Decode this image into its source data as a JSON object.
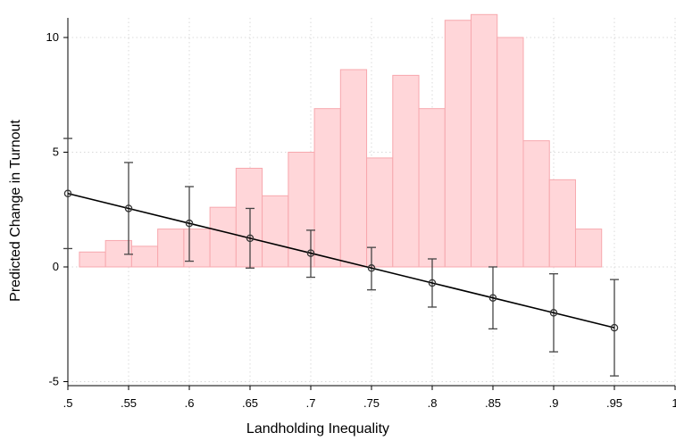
{
  "chart_data": {
    "type": "scatter",
    "title": "",
    "xlabel": "Landholding Inequality",
    "ylabel": "Predicted Change in Turnout",
    "xlim": [
      0.5,
      1.0
    ],
    "ylim": [
      -5,
      11
    ],
    "x_ticks": [
      ".5",
      ".55",
      ".6",
      ".65",
      ".7",
      ".75",
      ".8",
      ".85",
      ".9",
      ".95",
      "1"
    ],
    "y_ticks": [
      "-5",
      "0",
      "5",
      "10"
    ],
    "grid": true,
    "histogram": {
      "bin_width": 0.0215,
      "bins": [
        {
          "x0": 0.5095,
          "value": 0.65
        },
        {
          "x0": 0.531,
          "value": 1.15
        },
        {
          "x0": 0.5525,
          "value": 0.9
        },
        {
          "x0": 0.574,
          "value": 1.65
        },
        {
          "x0": 0.5955,
          "value": 1.65
        },
        {
          "x0": 0.617,
          "value": 2.6
        },
        {
          "x0": 0.6385,
          "value": 4.3
        },
        {
          "x0": 0.66,
          "value": 3.1
        },
        {
          "x0": 0.6815,
          "value": 5.0
        },
        {
          "x0": 0.703,
          "value": 6.9
        },
        {
          "x0": 0.7245,
          "value": 8.6
        },
        {
          "x0": 0.746,
          "value": 4.75
        },
        {
          "x0": 0.7675,
          "value": 8.35
        },
        {
          "x0": 0.789,
          "value": 6.9
        },
        {
          "x0": 0.8105,
          "value": 10.75
        },
        {
          "x0": 0.832,
          "value": 11.0
        },
        {
          "x0": 0.8535,
          "value": 10.0
        },
        {
          "x0": 0.875,
          "value": 5.5
        },
        {
          "x0": 0.8965,
          "value": 3.8
        },
        {
          "x0": 0.918,
          "value": 1.65
        }
      ],
      "color": "#f7a8ae"
    },
    "series": [
      {
        "x": [
          0.5,
          0.55,
          0.6,
          0.65,
          0.7,
          0.75,
          0.8,
          0.85,
          0.9,
          0.95
        ],
        "y": [
          3.2,
          2.55,
          1.9,
          1.25,
          0.6,
          -0.05,
          -0.7,
          -1.35,
          -2.0,
          -2.65
        ],
        "ci_low": [
          0.8,
          0.55,
          0.25,
          -0.05,
          -0.45,
          -1.0,
          -1.75,
          -2.7,
          -3.7,
          -4.75
        ],
        "ci_high": [
          5.6,
          4.55,
          3.5,
          2.55,
          1.6,
          0.85,
          0.35,
          0.0,
          -0.3,
          -0.55
        ],
        "color": "#000000"
      }
    ]
  }
}
